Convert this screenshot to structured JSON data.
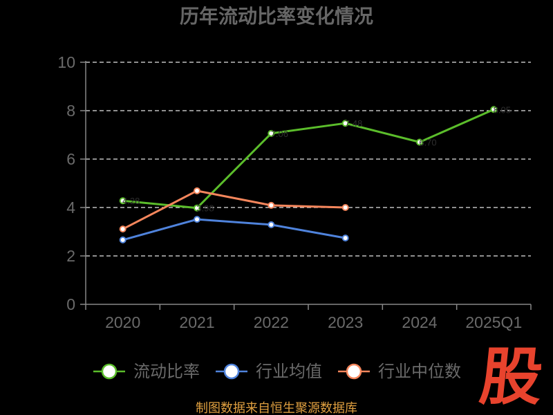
{
  "chart_data": {
    "type": "line",
    "title": "历年流动比率变化情况",
    "categories": [
      "2020",
      "2021",
      "2022",
      "2023",
      "2024",
      "2025Q1"
    ],
    "series": [
      {
        "name": "流动比率",
        "color": "#5bbd2b",
        "values": [
          4.28,
          3.98,
          7.06,
          7.48,
          6.7,
          8.05
        ],
        "data_labels": true
      },
      {
        "name": "行业均值",
        "color": "#4f83dc",
        "values": [
          2.66,
          3.51,
          3.29,
          2.74,
          null,
          null
        ],
        "data_labels": false
      },
      {
        "name": "行业中位数",
        "color": "#f5865c",
        "values": [
          3.11,
          4.69,
          4.09,
          4.0,
          null,
          null
        ],
        "data_labels": false
      }
    ],
    "xlabel": "",
    "ylabel": "",
    "ylim": [
      0,
      10
    ],
    "yticks": [
      0,
      2,
      4,
      6,
      8,
      10
    ],
    "grid": true,
    "legend_position": "bottom"
  },
  "logo_text": "股",
  "footer": "制图数据来自恒生聚源数据库",
  "colors": {
    "background": "#000000",
    "axis": "#888888",
    "grid": "#e6e6e6",
    "logo": "#e8432d",
    "footer": "#e0a040"
  }
}
